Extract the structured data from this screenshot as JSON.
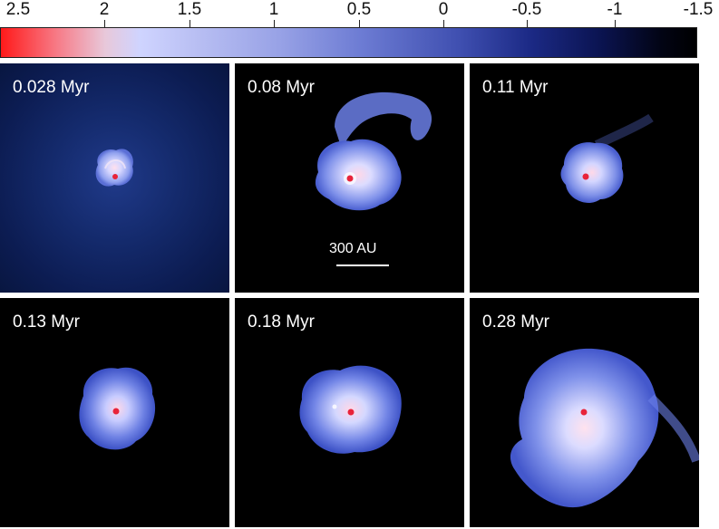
{
  "colorbar": {
    "ticks": [
      "2.5",
      "2",
      "1.5",
      "1",
      "0.5",
      "0",
      "-0.5",
      "-1",
      "-1.5"
    ]
  },
  "panels": [
    {
      "label": "0.028 Myr"
    },
    {
      "label": "0.08 Myr"
    },
    {
      "label": "0.11 Myr"
    },
    {
      "label": "0.13 Myr"
    },
    {
      "label": "0.18 Myr"
    },
    {
      "label": "0.28 Myr"
    }
  ],
  "scalebar": {
    "label": "300 AU"
  },
  "colors": {
    "disk": "#6f85ef",
    "core": "#e8233a",
    "background": "#000000"
  }
}
